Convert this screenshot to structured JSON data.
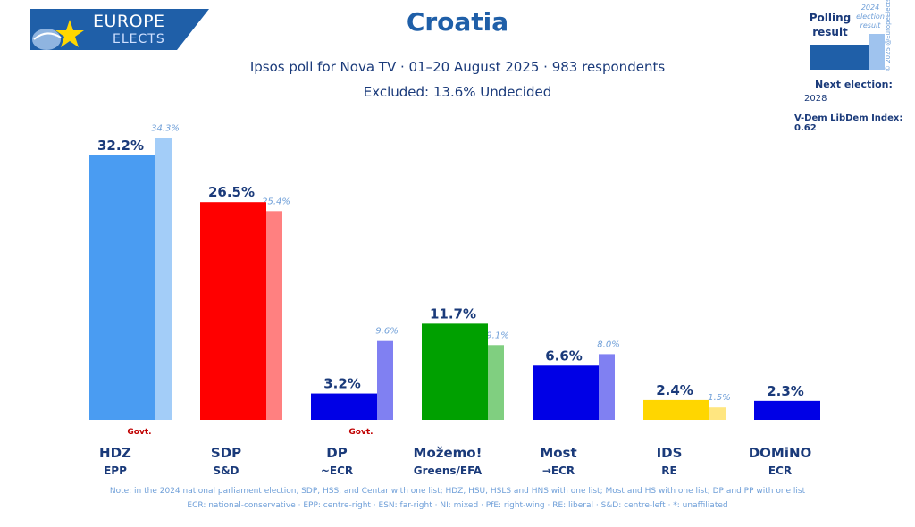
{
  "header": {
    "logo_line1": "EUROPE",
    "logo_line2": "ELECTS",
    "title": "Croatia",
    "subtitle": "Ipsos poll for Nova TV · 01–20 August 2025 · 983 respondents",
    "excluded": "Excluded: 13.6% Undecided"
  },
  "legend": {
    "polling_result": "Polling result",
    "previous_label": "2024 election result",
    "copyright": "© 2025 @EuropeElects",
    "next_election_label": "Next election:",
    "next_election_year": "2028",
    "vdem": "V-Dem LibDem Index: 0.62"
  },
  "chart_data": {
    "type": "bar",
    "title": "Croatia",
    "ylim": [
      0,
      35
    ],
    "grid": false,
    "categories": [
      "HDZ",
      "SDP",
      "DP",
      "Možemo!",
      "Most",
      "IDS",
      "DOMiNO"
    ],
    "groups": [
      "EPP",
      "S&D",
      "~ECR",
      "Greens/EFA",
      "→ECR",
      "RE",
      "ECR"
    ],
    "government": [
      "Govt.",
      "",
      "Govt.",
      "",
      "",
      "",
      ""
    ],
    "series": [
      {
        "name": "Polling result",
        "values": [
          32.2,
          26.5,
          3.2,
          11.7,
          6.6,
          2.4,
          2.3
        ],
        "labels": [
          "32.2%",
          "26.5%",
          "3.2%",
          "11.7%",
          "6.6%",
          "2.4%",
          "2.3%"
        ],
        "colors": [
          "#4a9cf2",
          "#ff0000",
          "#0000e6",
          "#00a000",
          "#0000e6",
          "#ffd600",
          "#0000e6"
        ]
      },
      {
        "name": "2024 election result",
        "values": [
          34.3,
          25.4,
          9.6,
          9.1,
          8.0,
          1.5,
          null
        ],
        "labels": [
          "34.3%",
          "25.4%",
          "9.6%",
          "9.1%",
          "8.0%",
          "1.5%",
          ""
        ],
        "colors": [
          "#a3cdf8",
          "#ff8080",
          "#8080f2",
          "#80cf80",
          "#8080f2",
          "#ffe680",
          "#8080f2"
        ]
      }
    ]
  },
  "footer": {
    "note": "Note: in the 2024 national parliament election, SDP, HSS, and Centar with one list; HDZ, HSU, HSLS and HNS with one list; Most and HS with one list; DP and PP with one list",
    "glossary": "ECR: national-conservative · EPP: centre-right · ESN: far-right · NI: mixed · PfE: right-wing · RE: liberal · S&D: centre-left · *: unaffiliated"
  }
}
